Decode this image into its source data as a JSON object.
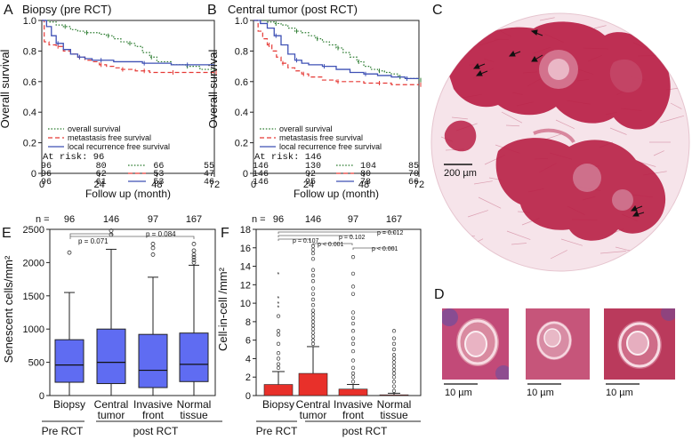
{
  "colors": {
    "overall": "#2e7d32",
    "metastasis": "#e53935",
    "local": "#3f51b5",
    "box_fill": "#5f6cf2",
    "bar_fill": "#e8302a",
    "tissue": "#b81f45"
  },
  "panel_labels": {
    "A": "A",
    "B": "B",
    "C": "C",
    "D": "D",
    "E": "E",
    "F": "F"
  },
  "chart_data": [
    {
      "id": "A",
      "type": "line",
      "title": "Biopsy (pre RCT)",
      "xlabel": "Follow up (month)",
      "ylabel": "Overall survival",
      "xlim": [
        0,
        72
      ],
      "ylim": [
        0,
        1.0
      ],
      "xticks": [
        "0",
        "24",
        "48",
        "72"
      ],
      "yticks": [
        "0",
        "0.2",
        "0.4",
        "0.6",
        "0.8",
        "1.0"
      ],
      "legend": [
        "overall survival",
        "metastasis free survival",
        "local recurrence free survival"
      ],
      "series": [
        {
          "name": "overall survival",
          "style": "dotted",
          "x": [
            0,
            3,
            6,
            9,
            12,
            15,
            18,
            21,
            24,
            27,
            30,
            33,
            36,
            39,
            42,
            45,
            48,
            54,
            60,
            66,
            72
          ],
          "y": [
            1.0,
            0.99,
            0.97,
            0.96,
            0.94,
            0.93,
            0.92,
            0.92,
            0.91,
            0.9,
            0.88,
            0.86,
            0.85,
            0.83,
            0.79,
            0.76,
            0.73,
            0.71,
            0.7,
            0.68,
            0.67
          ]
        },
        {
          "name": "metastasis free survival",
          "style": "dashed",
          "x": [
            0,
            1,
            3,
            6,
            9,
            12,
            15,
            18,
            21,
            24,
            27,
            30,
            33,
            36,
            39,
            42,
            45,
            48,
            54,
            60,
            66,
            72
          ],
          "y": [
            1.0,
            0.86,
            0.84,
            0.83,
            0.8,
            0.78,
            0.76,
            0.74,
            0.73,
            0.71,
            0.7,
            0.69,
            0.68,
            0.68,
            0.67,
            0.67,
            0.66,
            0.66,
            0.66,
            0.66,
            0.66,
            0.66
          ]
        },
        {
          "name": "local recurrence free survival",
          "style": "solid",
          "x": [
            0,
            2,
            4,
            6,
            9,
            12,
            15,
            18,
            21,
            24,
            30,
            36,
            42,
            48,
            54,
            60,
            66,
            72
          ],
          "y": [
            1.0,
            0.96,
            0.9,
            0.85,
            0.81,
            0.78,
            0.76,
            0.75,
            0.74,
            0.74,
            0.73,
            0.73,
            0.72,
            0.72,
            0.71,
            0.71,
            0.71,
            0.71
          ]
        }
      ],
      "risk_title": "At risk: 96",
      "risk_table": [
        [
          "96",
          "80",
          "66",
          "55"
        ],
        [
          "96",
          "62",
          "53",
          "47"
        ],
        [
          "96",
          "61",
          "53",
          "46"
        ]
      ]
    },
    {
      "id": "B",
      "type": "line",
      "title": "Central tumor (post RCT)",
      "xlabel": "Follow up (month)",
      "ylabel": "Overall survival",
      "xlim": [
        0,
        72
      ],
      "ylim": [
        0,
        1.0
      ],
      "xticks": [
        "0",
        "24",
        "48",
        "72"
      ],
      "yticks": [
        "0",
        "0.2",
        "0.4",
        "0.6",
        "0.8",
        "1.0"
      ],
      "legend": [
        "overall survival",
        "metastasis free survival",
        "local recurrence free survival"
      ],
      "series": [
        {
          "name": "overall survival",
          "style": "dotted",
          "x": [
            0,
            3,
            6,
            9,
            12,
            15,
            18,
            21,
            24,
            27,
            30,
            33,
            36,
            39,
            42,
            45,
            48,
            51,
            54,
            57,
            60,
            63,
            66,
            69,
            72
          ],
          "y": [
            1.0,
            1.0,
            0.99,
            0.98,
            0.97,
            0.95,
            0.93,
            0.92,
            0.9,
            0.88,
            0.86,
            0.84,
            0.82,
            0.79,
            0.76,
            0.73,
            0.7,
            0.68,
            0.67,
            0.66,
            0.65,
            0.63,
            0.62,
            0.62,
            0.61
          ]
        },
        {
          "name": "metastasis free survival",
          "style": "dashed",
          "x": [
            0,
            2,
            4,
            6,
            8,
            10,
            12,
            15,
            18,
            21,
            24,
            30,
            36,
            42,
            48,
            54,
            60,
            66,
            72
          ],
          "y": [
            1.0,
            0.93,
            0.88,
            0.84,
            0.8,
            0.76,
            0.72,
            0.69,
            0.67,
            0.65,
            0.63,
            0.61,
            0.6,
            0.6,
            0.59,
            0.59,
            0.58,
            0.58,
            0.58
          ]
        },
        {
          "name": "local recurrence free survival",
          "style": "solid",
          "x": [
            0,
            3,
            6,
            9,
            12,
            15,
            18,
            21,
            24,
            30,
            36,
            42,
            48,
            54,
            60,
            66,
            72
          ],
          "y": [
            1.0,
            0.98,
            0.95,
            0.9,
            0.84,
            0.78,
            0.74,
            0.72,
            0.71,
            0.7,
            0.68,
            0.66,
            0.65,
            0.64,
            0.63,
            0.62,
            0.62
          ]
        }
      ],
      "risk_title": "At risk: 146",
      "risk_table": [
        [
          "146",
          "130",
          "104",
          "85"
        ],
        [
          "146",
          "92",
          "80",
          "70"
        ],
        [
          "146",
          "95",
          "78",
          "66"
        ]
      ]
    },
    {
      "id": "E",
      "type": "box",
      "ylabel": "Senescent cells/mm²",
      "ylim": [
        0,
        2500
      ],
      "yticks": [
        "0",
        "500",
        "1000",
        "1500",
        "2000",
        "2500"
      ],
      "n_prefix": "n =",
      "n": [
        "96",
        "146",
        "97",
        "167"
      ],
      "categories": [
        [
          "Biopsy"
        ],
        [
          "Central",
          "tumor"
        ],
        [
          "Invasive",
          "front"
        ],
        [
          "Normal",
          "tissue"
        ]
      ],
      "groups": [
        "Pre RCT",
        "post RCT"
      ],
      "boxes": [
        {
          "q1": 200,
          "median": 460,
          "q3": 840,
          "whisker_low": 0,
          "whisker_high": 1550,
          "outliers": [
            2150
          ]
        },
        {
          "q1": 180,
          "median": 500,
          "q3": 1000,
          "whisker_low": 0,
          "whisker_high": 2200,
          "outliers": [
            2420,
            2480
          ]
        },
        {
          "q1": 120,
          "median": 380,
          "q3": 920,
          "whisker_low": 0,
          "whisker_high": 1780,
          "outliers": [
            2120,
            2220,
            2280
          ]
        },
        {
          "q1": 210,
          "median": 470,
          "q3": 940,
          "whisker_low": 0,
          "whisker_high": 1960,
          "outliers": [
            2000,
            2040,
            2080,
            2120,
            2180,
            2280
          ]
        }
      ],
      "annotations": [
        "p = 0.071",
        "p = 0.084"
      ]
    },
    {
      "id": "F",
      "type": "bar",
      "ylabel": "Cell-in-cell /mm²",
      "ylim": [
        0,
        18
      ],
      "yticks": [
        "0",
        "2",
        "4",
        "6",
        "8",
        "10",
        "12",
        "14",
        "16",
        "18"
      ],
      "n_prefix": "n =",
      "n": [
        "96",
        "146",
        "97",
        "167"
      ],
      "categories": [
        [
          "Biopsy"
        ],
        [
          "Central",
          "tumor"
        ],
        [
          "Invasive",
          "front"
        ],
        [
          "Normal",
          "tissue"
        ]
      ],
      "groups": [
        "Pre RCT",
        "post RCT"
      ],
      "bars": [
        {
          "value": 1.2,
          "error": 2.6,
          "points": [
            3.0,
            3.4,
            4.0,
            4.6,
            5.6,
            6.6,
            7.0,
            8.6,
            9.6,
            10.0,
            10.6,
            13.2
          ]
        },
        {
          "value": 2.4,
          "error": 5.3,
          "points": [
            5.6,
            6.0,
            6.4,
            6.8,
            7.2,
            7.6,
            8.0,
            8.4,
            8.8,
            9.2,
            9.8,
            10.4,
            11.0,
            11.6,
            12.4,
            13.0,
            13.6,
            14.8,
            15.4,
            15.8,
            16.2
          ]
        },
        {
          "value": 0.7,
          "error": 1.2,
          "points": [
            1.5,
            2.0,
            2.4,
            3.0,
            3.8,
            4.8,
            5.6,
            6.2,
            7.0,
            7.8,
            8.4,
            9.0,
            11.0,
            11.8,
            13.2,
            15.0
          ]
        },
        {
          "value": 0.08,
          "error": 0.25,
          "points": [
            0.5,
            1.0,
            1.5,
            2.0,
            2.4,
            2.8,
            3.2,
            3.6,
            4.0,
            4.4,
            5.0,
            5.6,
            6.2,
            7.0
          ]
        }
      ],
      "annotations": [
        "p = 0.107",
        "p = 0.102",
        "p = 0.012",
        "p < 0.001",
        "p < 0.001"
      ]
    }
  ],
  "panel_C": {
    "scale_label": "200 µm"
  },
  "panel_D": {
    "scale_labels": [
      "10 µm",
      "10 µm",
      "10 µm"
    ]
  }
}
